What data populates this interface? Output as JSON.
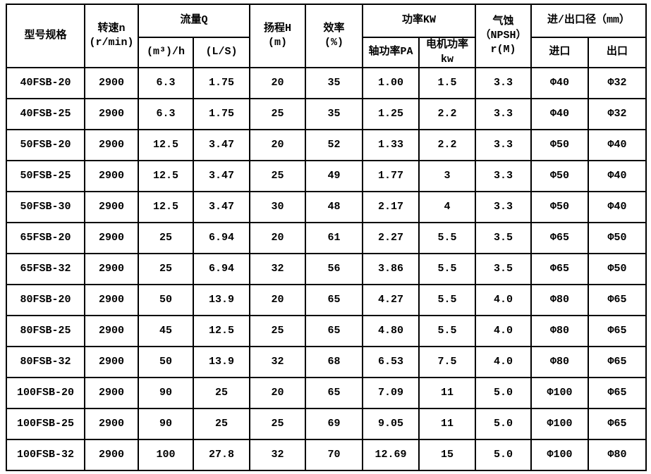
{
  "table": {
    "header": {
      "model": "型号规格",
      "speed": "转速n\n(r/min)",
      "flow": "流量Q",
      "flow_m3h": "(m³)/h",
      "flow_ls": "(L/S)",
      "head": "扬程H\n(m)",
      "efficiency": "效率\n(%)",
      "power": "功率KW",
      "shaft_power": "轴功率PA",
      "motor_power": "电机功率kw",
      "npsh": "气蚀\n（NPSH）\nr(M)",
      "inlet_outlet": "进/出口径（mm）",
      "inlet": "进口",
      "outlet": "出口"
    },
    "column_keys": [
      "model",
      "speed",
      "flow-m3h",
      "flow-ls",
      "head",
      "efficiency",
      "shaft-power",
      "motor-power",
      "npsh",
      "inlet",
      "outlet"
    ],
    "rows": [
      [
        "40FSB-20",
        "2900",
        "6.3",
        "1.75",
        "20",
        "35",
        "1.00",
        "1.5",
        "3.3",
        "Φ40",
        "Φ32"
      ],
      [
        "40FSB-25",
        "2900",
        "6.3",
        "1.75",
        "25",
        "35",
        "1.25",
        "2.2",
        "3.3",
        "Φ40",
        "Φ32"
      ],
      [
        "50FSB-20",
        "2900",
        "12.5",
        "3.47",
        "20",
        "52",
        "1.33",
        "2.2",
        "3.3",
        "Φ50",
        "Φ40"
      ],
      [
        "50FSB-25",
        "2900",
        "12.5",
        "3.47",
        "25",
        "49",
        "1.77",
        "3",
        "3.3",
        "Φ50",
        "Φ40"
      ],
      [
        "50FSB-30",
        "2900",
        "12.5",
        "3.47",
        "30",
        "48",
        "2.17",
        "4",
        "3.3",
        "Φ50",
        "Φ40"
      ],
      [
        "65FSB-20",
        "2900",
        "25",
        "6.94",
        "20",
        "61",
        "2.27",
        "5.5",
        "3.5",
        "Φ65",
        "Φ50"
      ],
      [
        "65FSB-32",
        "2900",
        "25",
        "6.94",
        "32",
        "56",
        "3.86",
        "5.5",
        "3.5",
        "Φ65",
        "Φ50"
      ],
      [
        "80FSB-20",
        "2900",
        "50",
        "13.9",
        "20",
        "65",
        "4.27",
        "5.5",
        "4.0",
        "Φ80",
        "Φ65"
      ],
      [
        "80FSB-25",
        "2900",
        "45",
        "12.5",
        "25",
        "65",
        "4.80",
        "5.5",
        "4.0",
        "Φ80",
        "Φ65"
      ],
      [
        "80FSB-32",
        "2900",
        "50",
        "13.9",
        "32",
        "68",
        "6.53",
        "7.5",
        "4.0",
        "Φ80",
        "Φ65"
      ],
      [
        "100FSB-20",
        "2900",
        "90",
        "25",
        "20",
        "65",
        "7.09",
        "11",
        "5.0",
        "Φ100",
        "Φ65"
      ],
      [
        "100FSB-25",
        "2900",
        "90",
        "25",
        "25",
        "69",
        "9.05",
        "11",
        "5.0",
        "Φ100",
        "Φ65"
      ],
      [
        "100FSB-32",
        "2900",
        "100",
        "27.8",
        "32",
        "70",
        "12.69",
        "15",
        "5.0",
        "Φ100",
        "Φ80"
      ]
    ]
  }
}
